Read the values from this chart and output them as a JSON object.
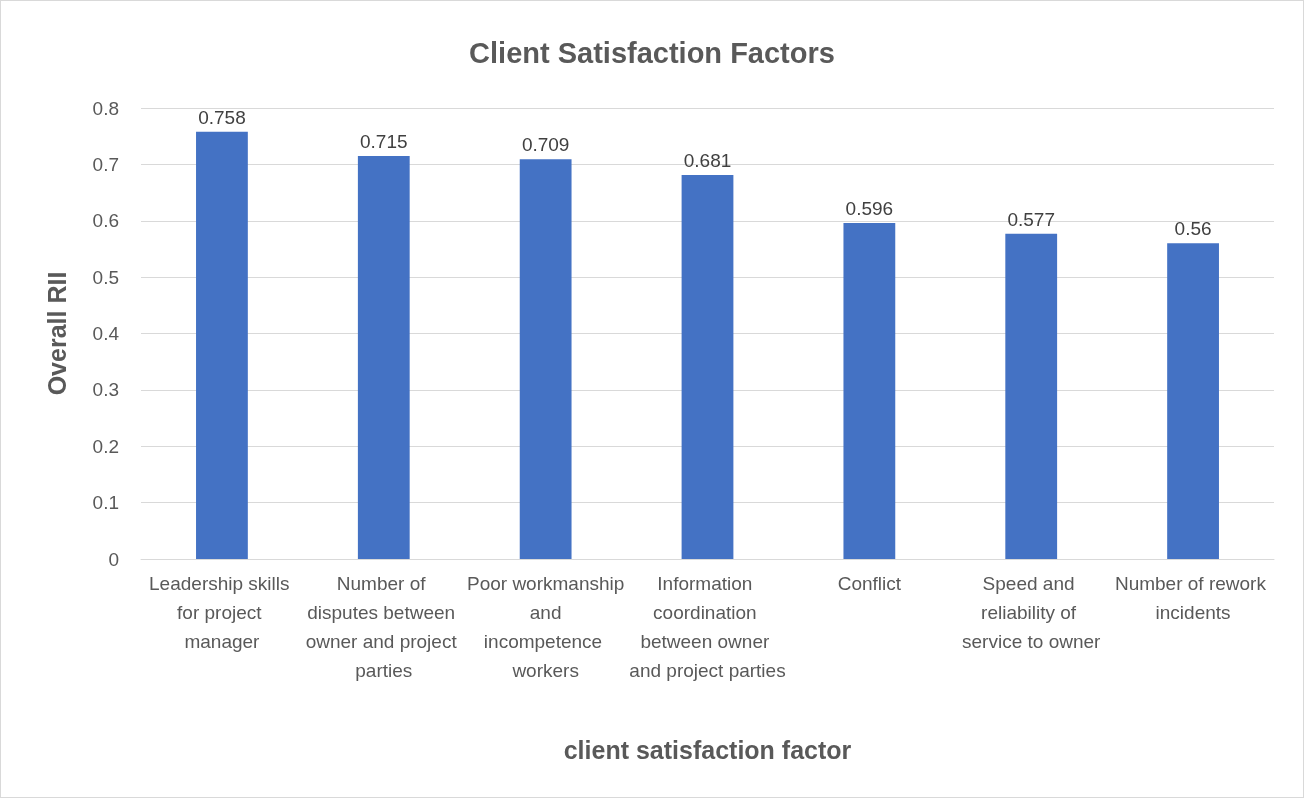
{
  "chart_data": {
    "type": "bar",
    "title": "Client Satisfaction Factors",
    "xlabel": "client satisfaction factor",
    "ylabel": "Overall RII",
    "categories": [
      "Leadership skills for project manager",
      "Number of disputes between owner and project parties",
      "Poor workmanship and incompetence workers",
      "Information coordination between owner and project parties",
      "Conflict",
      "Speed and reliability of service to owner",
      "Number of rework incidents"
    ],
    "values": [
      0.758,
      0.715,
      0.709,
      0.681,
      0.596,
      0.577,
      0.56
    ],
    "color": "#4472c4",
    "ylim": [
      0,
      0.8
    ],
    "yticks": [
      0,
      0.1,
      0.2,
      0.3,
      0.4,
      0.5,
      0.6,
      0.7,
      0.8
    ],
    "grid": "y",
    "data_labels": true
  }
}
